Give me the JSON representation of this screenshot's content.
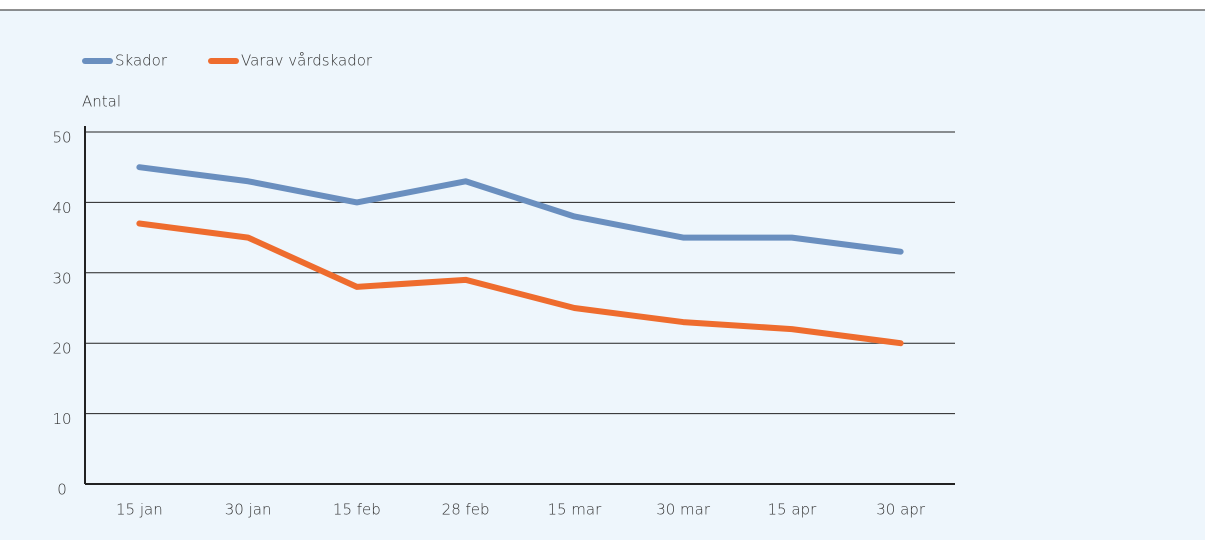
{
  "chart_data": {
    "type": "line",
    "y_label": "Antal",
    "categories": [
      "15 jan",
      "30 jan",
      "15 feb",
      "28 feb",
      "15 mar",
      "30 mar",
      "15 apr",
      "30 apr"
    ],
    "series": [
      {
        "name": "Skador",
        "color": "#6a8fbf",
        "values": [
          45,
          43,
          40,
          43,
          38,
          35,
          35,
          33
        ]
      },
      {
        "name": "Varav vårdskador",
        "color": "#ee6c2e",
        "values": [
          37,
          35,
          28,
          29,
          25,
          23,
          22,
          20
        ]
      }
    ],
    "ylim": [
      0,
      50
    ],
    "yticks": [
      0,
      10,
      20,
      30,
      40,
      50
    ],
    "grid": true
  }
}
